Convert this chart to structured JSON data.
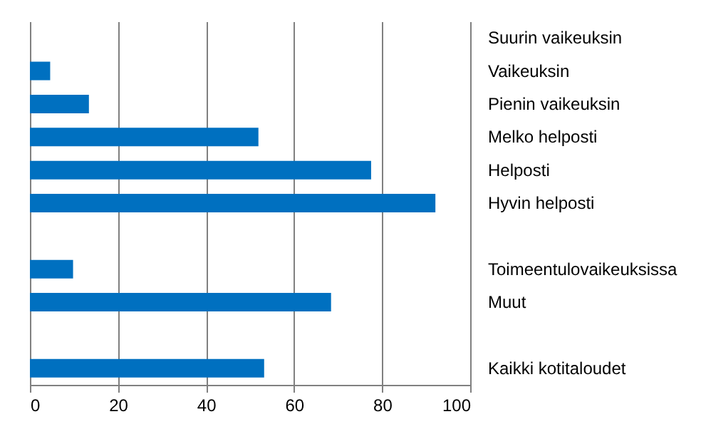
{
  "chart_data": {
    "type": "bar",
    "orientation": "horizontal",
    "categories": [
      "Suurin vaikeuksin",
      "Vaikeuksin",
      "Pienin vaikeuksin",
      "Melko helposti",
      "Helposti",
      "Hyvin helposti",
      null,
      "Toimeentulovaikeuksissa",
      "Muut",
      null,
      "Kaikki kotitaloudet"
    ],
    "values": [
      null,
      4.6,
      13.4,
      51.9,
      77.5,
      92.1,
      null,
      9.8,
      68.4,
      null,
      53.2
    ],
    "color": "#0070c0",
    "xlim": [
      0,
      100
    ],
    "xticks": [
      0,
      20,
      40,
      60,
      80,
      100
    ],
    "grid": "x"
  }
}
